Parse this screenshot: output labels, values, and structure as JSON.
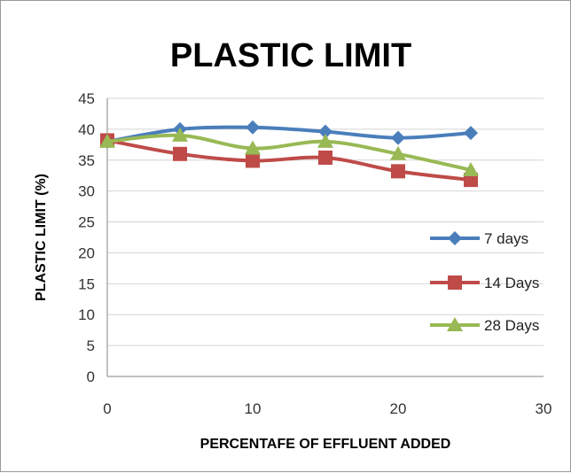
{
  "chart_data": {
    "type": "line",
    "title": "PLASTIC LIMIT",
    "xlabel": "PERCENTAFE OF EFFLUENT ADDED",
    "ylabel": "PLASTIC LIMIT (%)",
    "xlim": [
      0,
      30
    ],
    "ylim": [
      0,
      45
    ],
    "x_ticks": [
      0,
      10,
      20,
      30
    ],
    "y_ticks": [
      0,
      5,
      10,
      15,
      20,
      25,
      30,
      35,
      40,
      45
    ],
    "grid": "horizontal",
    "legend_position": "right",
    "series": [
      {
        "name": "7 days",
        "color": "#4a7ebb",
        "marker": "diamond",
        "x": [
          0,
          5,
          10,
          15,
          20,
          25
        ],
        "y": [
          38.0,
          40.0,
          40.3,
          39.6,
          38.6,
          39.4
        ]
      },
      {
        "name": "14 Days",
        "color": "#be4b48",
        "marker": "square",
        "x": [
          0,
          5,
          10,
          15,
          20,
          25
        ],
        "y": [
          38.2,
          36.0,
          34.9,
          35.4,
          33.2,
          31.8
        ]
      },
      {
        "name": "28 Days",
        "color": "#98b954",
        "marker": "triangle",
        "x": [
          0,
          5,
          10,
          15,
          20,
          25
        ],
        "y": [
          38.0,
          39.0,
          36.9,
          38.0,
          36.0,
          33.4
        ]
      }
    ]
  }
}
